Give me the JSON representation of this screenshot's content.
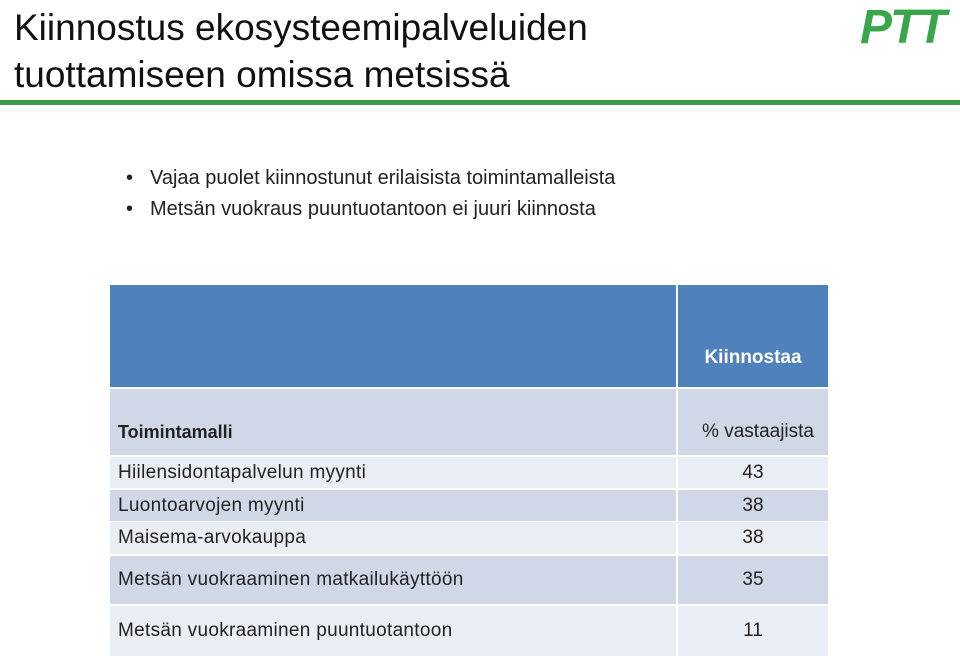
{
  "header": {
    "title_lines": [
      "Kiinnostus ekosysteemipalveluiden",
      "tuottamiseen omissa metsissä"
    ],
    "logo": "PTT"
  },
  "bullets": [
    "Vajaa puolet kiinnostunut erilaisista toimintamalleista",
    "Metsän vuokraus puuntuotantoon ei juuri kiinnosta"
  ],
  "table": {
    "header_top": "Kiinnostaa",
    "column_headers": [
      "Toimintamalli",
      "% vastaajista"
    ],
    "rows": [
      [
        "Hiilensidontapalvelun myynti",
        43
      ],
      [
        "Luontoarvojen myynti",
        38
      ],
      [
        "Maisema-arvokauppa",
        38
      ],
      [
        "Metsän vuokraaminen matkailukäyttöön",
        35
      ],
      [
        "Metsän vuokraaminen puuntuotantoon",
        11
      ]
    ]
  }
}
